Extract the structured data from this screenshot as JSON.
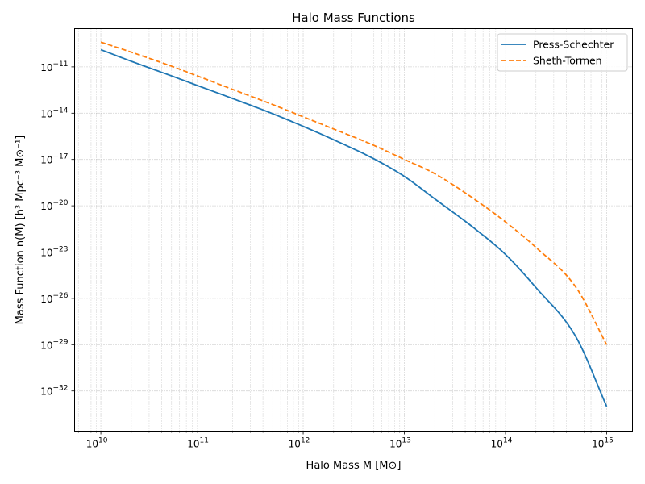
{
  "chart_data": {
    "type": "line",
    "title": "Halo Mass Functions",
    "xlabel": "Halo Mass M [M⊙]",
    "ylabel": "Mass Function n(M) [h³ Mpc⁻³ M⊙⁻¹]",
    "xscale": "log",
    "yscale": "log",
    "xlim": [
      5500000000.0,
      1800000000000000.0
    ],
    "ylim": [
      2.5e-35,
      3e-09
    ],
    "grid": true,
    "legend_position": "top-right",
    "x_ticks": [
      {
        "value": 10000000000.0,
        "base": "10",
        "exp": "10"
      },
      {
        "value": 100000000000.0,
        "base": "10",
        "exp": "11"
      },
      {
        "value": 1000000000000.0,
        "base": "10",
        "exp": "12"
      },
      {
        "value": 10000000000000.0,
        "base": "10",
        "exp": "13"
      },
      {
        "value": 100000000000000.0,
        "base": "10",
        "exp": "14"
      },
      {
        "value": 1000000000000000.0,
        "base": "10",
        "exp": "15"
      }
    ],
    "y_ticks": [
      {
        "value": 1e-11,
        "base": "10",
        "exp": "−11"
      },
      {
        "value": 1e-14,
        "base": "10",
        "exp": "−14"
      },
      {
        "value": 1e-17,
        "base": "10",
        "exp": "−17"
      },
      {
        "value": 1e-20,
        "base": "10",
        "exp": "−20"
      },
      {
        "value": 1e-23,
        "base": "10",
        "exp": "−23"
      },
      {
        "value": 1e-26,
        "base": "10",
        "exp": "−26"
      },
      {
        "value": 1e-29,
        "base": "10",
        "exp": "−29"
      },
      {
        "value": 1e-32,
        "base": "10",
        "exp": "−32"
      }
    ],
    "series": [
      {
        "name": "Press-Schechter",
        "color": "#1f77b4",
        "dash": "solid",
        "x": [
          10000000000.0,
          20000000000.0,
          50000000000.0,
          100000000000.0,
          200000000000.0,
          500000000000.0,
          1000000000000.0,
          2000000000000.0,
          5000000000000.0,
          10000000000000.0,
          20000000000000.0,
          50000000000000.0,
          100000000000000.0,
          200000000000000.0,
          500000000000000.0,
          1000000000000000.0
        ],
        "y": [
          1.3e-10,
          2.3e-11,
          2.6e-12,
          4.8e-13,
          9e-14,
          9.2e-15,
          1.4e-15,
          1.9e-16,
          1.1e-17,
          8e-19,
          2.8e-20,
          3.2e-22,
          7e-24,
          5e-26,
          3e-29,
          1e-33
        ]
      },
      {
        "name": "Sheth-Tormen",
        "color": "#ff7f0e",
        "dash": "dashed",
        "x": [
          10000000000.0,
          20000000000.0,
          50000000000.0,
          100000000000.0,
          200000000000.0,
          500000000000.0,
          1000000000000.0,
          2000000000000.0,
          5000000000000.0,
          10000000000000.0,
          20000000000000.0,
          50000000000000.0,
          100000000000000.0,
          200000000000000.0,
          500000000000000.0,
          1000000000000000.0
        ],
        "y": [
          4e-10,
          9e-11,
          1.1e-11,
          2e-12,
          3.5e-13,
          3.6e-14,
          5.8e-15,
          9.5e-16,
          8.2e-17,
          1e-17,
          1.2e-18,
          2.5e-20,
          9e-22,
          2e-23,
          5e-26,
          1e-29
        ]
      }
    ]
  }
}
